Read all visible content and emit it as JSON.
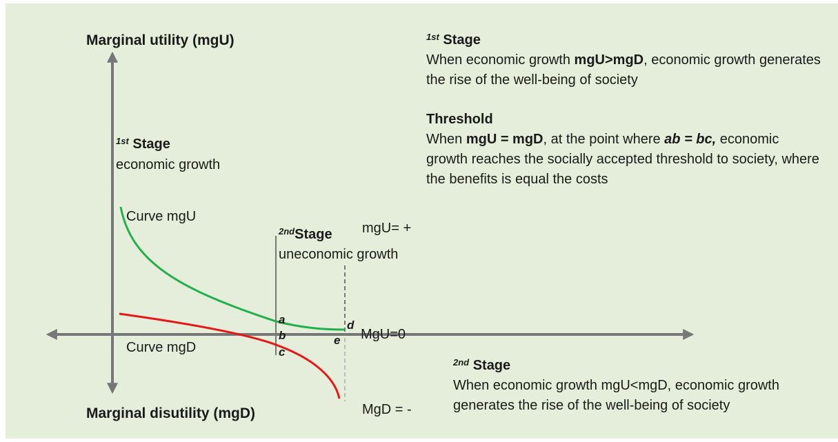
{
  "axes": {
    "top_label": "Marginal utility (mgU)",
    "bottom_label": "Marginal disutility (mgD)"
  },
  "stage1_label": {
    "number": "1",
    "suffix": "st",
    "word": "Stage",
    "description": "economic growth"
  },
  "curves": {
    "mgU": "Curve mgU",
    "mgD": "Curve mgD"
  },
  "stage2_label": {
    "number": "2",
    "suffix": "nd",
    "word": "Stage",
    "description": "uneconomic growth"
  },
  "markers": {
    "mgU_plus": "mgU= +",
    "mgU_zero": "MgU=0",
    "mgD_minus": "MgD = -"
  },
  "points": {
    "a": "a",
    "b": "b",
    "c": "c",
    "d": "d",
    "e": "e"
  },
  "notes": {
    "stage1": {
      "number": "1",
      "suffix": "st",
      "word": "Stage",
      "text": [
        "When economic growth ",
        "mgU>mgD",
        ", economic growth generates the rise of the well-being of society"
      ]
    },
    "threshold": {
      "heading": "Threshold",
      "text": [
        "When ",
        "mgU = mgD",
        ", at the point where ",
        "ab = bc,",
        " economic growth reaches the socially accepted threshold to society, where the benefits is equal the costs"
      ]
    },
    "stage2": {
      "number": "2",
      "suffix": "nd",
      "word": "Stage",
      "text": "When economic growth mgU<mgD, economic growth generates the rise of the well-being of society"
    }
  }
}
